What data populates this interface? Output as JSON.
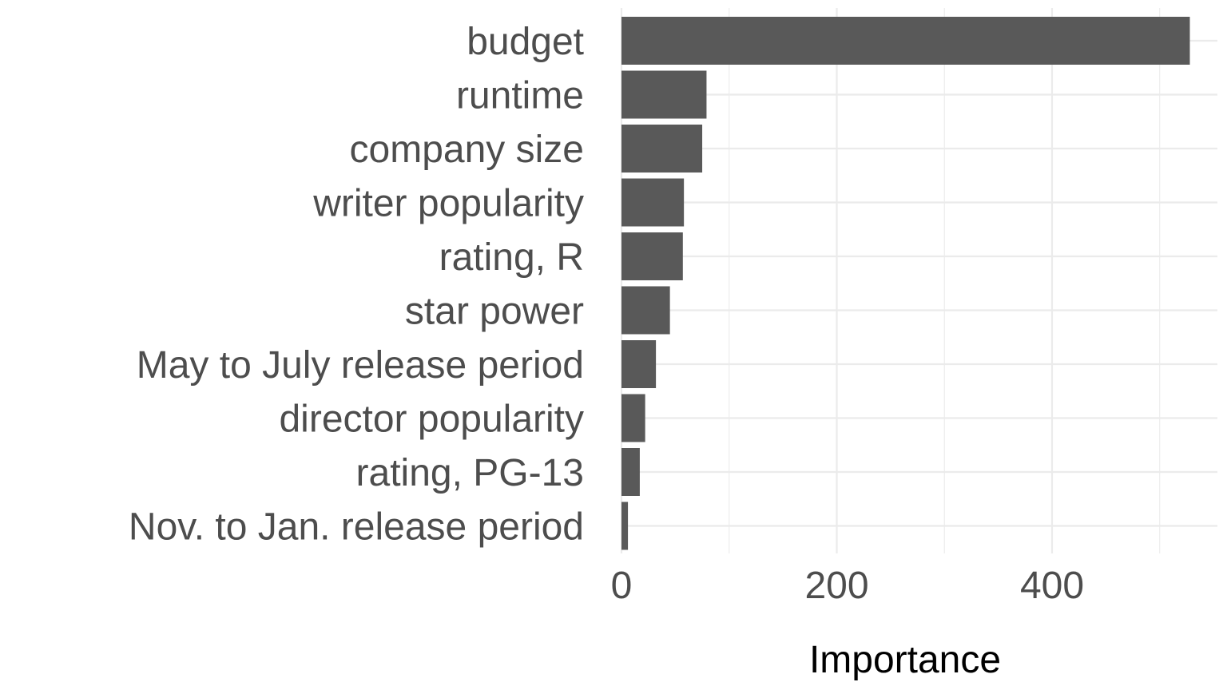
{
  "chart_data": {
    "type": "bar",
    "orientation": "horizontal",
    "title": "",
    "xlabel": "Importance",
    "ylabel": "",
    "categories": [
      "budget",
      "runtime",
      "company size",
      "writer popularity",
      "rating, R",
      "star power",
      "May to July release period",
      "director popularity",
      "rating, PG-13",
      "Nov. to Jan. release period"
    ],
    "values": [
      528,
      79,
      75,
      58,
      57,
      45,
      32,
      22,
      17,
      6
    ],
    "xlim": [
      0,
      555
    ],
    "x_ticks": [
      0,
      200,
      400
    ],
    "x_tick_labels": [
      "0",
      "200",
      "400"
    ],
    "x_minor_ticks": [
      100,
      300,
      500
    ],
    "grid": true,
    "legend": "none",
    "colors": {
      "bar": "#595959",
      "grid": "#ebebeb",
      "text": "#4d4d4d",
      "title": "#000000"
    }
  }
}
